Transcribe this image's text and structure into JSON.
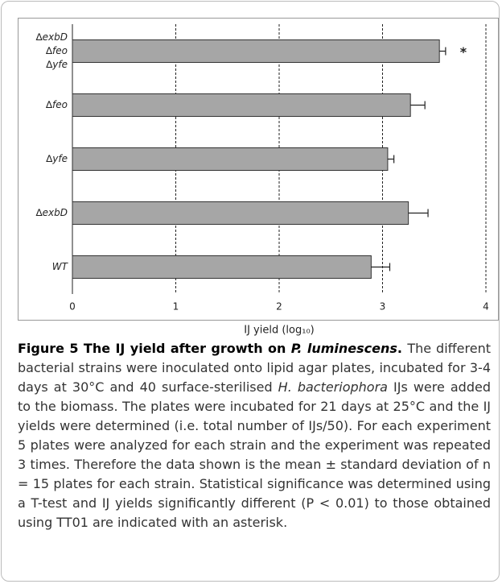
{
  "chart_data": {
    "type": "hbar",
    "categories": [
      "∆exbD\n∆feo\n∆yfe",
      "∆feo",
      "∆yfe",
      "∆exbD",
      "WT"
    ],
    "values": [
      3.55,
      3.27,
      3.05,
      3.25,
      2.89
    ],
    "errors": [
      0.06,
      0.14,
      0.06,
      0.19,
      0.18
    ],
    "significance": [
      "*",
      null,
      null,
      null,
      null
    ],
    "color": "#a6a6a6",
    "xlim": [
      0,
      4
    ],
    "xticks": [
      0,
      1,
      2,
      3,
      4
    ],
    "grid": true,
    "x_label": "IJ yield (log₁₀)"
  },
  "caption": {
    "runs": [
      "Figure 5 The IJ yield after growth on ",
      "P. luminescens",
      ". ",
      "The different bacterial strains were inoculated onto lipid agar plates, incubated for 3-4 days at 30°C and 40 surface-sterilised ",
      "H. bacteriophora",
      " IJs were added to the biomass. The plates were incubated for 21 days at 25°C and the IJ yields were determined (i.e. total number of IJs/50). For each experiment 5 plates were analyzed for each strain and the experiment was repeated 3 times. Therefore the data shown is the mean ± standard deviation of n = 15 plates for each strain. Statistical significance was determined using a T-test and IJ yields significantly different (P < 0.01) to those obtained using TT01 are indicated with an asterisk."
    ]
  }
}
